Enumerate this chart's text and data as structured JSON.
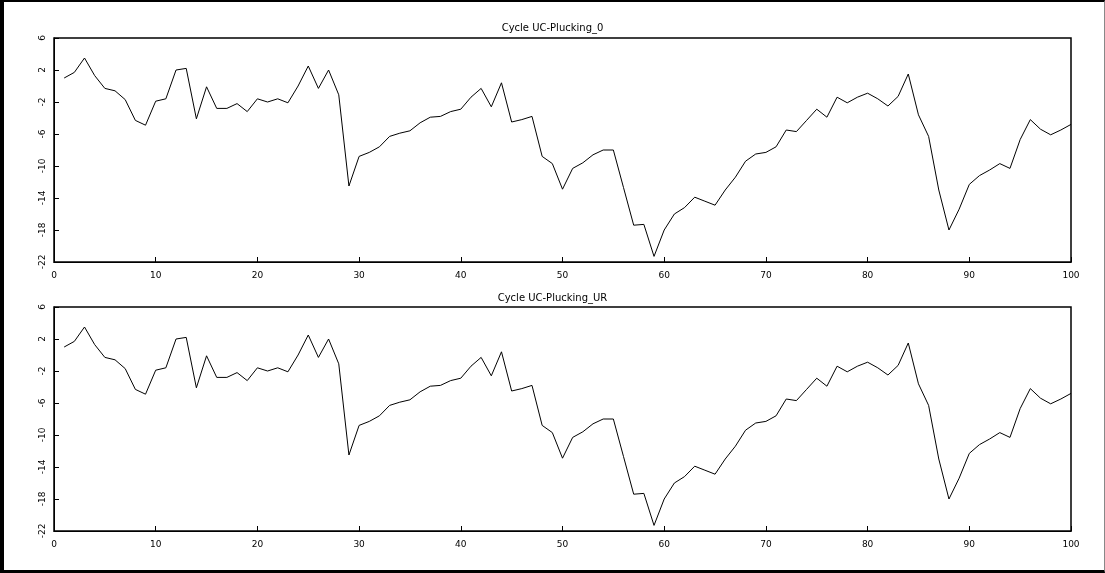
{
  "chart_data": [
    {
      "type": "line",
      "title": "Cycle UC-Plucking_0",
      "x": [
        1,
        2,
        3,
        4,
        5,
        6,
        7,
        8,
        9,
        10,
        11,
        12,
        13,
        14,
        15,
        16,
        17,
        18,
        19,
        20,
        21,
        22,
        23,
        24,
        25,
        26,
        27,
        28,
        29,
        30,
        31,
        32,
        33,
        34,
        35,
        36,
        37,
        38,
        39,
        40,
        41,
        42,
        43,
        44,
        45,
        46,
        47,
        48,
        49,
        50,
        51,
        52,
        53,
        54,
        55,
        56,
        57,
        58,
        59,
        60,
        61,
        62,
        63,
        64,
        65,
        66,
        67,
        68,
        69,
        70,
        71,
        72,
        73,
        74,
        75,
        76,
        77,
        78,
        79,
        80,
        81,
        82,
        83,
        84,
        85,
        86,
        87,
        88,
        89,
        90,
        91,
        92,
        93,
        94,
        95,
        96,
        97,
        98,
        99,
        100
      ],
      "series": [
        {
          "color": "#000000",
          "values": [
            1.0,
            1.7,
            3.5,
            1.3,
            -0.3,
            -0.6,
            -1.7,
            -4.3,
            -4.9,
            -1.9,
            -1.6,
            2.0,
            2.2,
            -4.1,
            -0.1,
            -2.8,
            -2.8,
            -2.2,
            -3.2,
            -1.6,
            -2.0,
            -1.6,
            -2.1,
            0.0,
            2.5,
            -0.3,
            2.0,
            -1.1,
            -12.5,
            -8.8,
            -8.3,
            -7.6,
            -6.3,
            -5.9,
            -5.6,
            -4.6,
            -3.9,
            -3.8,
            -3.2,
            -2.9,
            -1.4,
            -0.3,
            -2.6,
            0.4,
            -4.5,
            -4.2,
            -3.8,
            -8.8,
            -9.7,
            -12.9,
            -10.3,
            -9.6,
            -8.6,
            -8.0,
            -8.0,
            -12.7,
            -17.4,
            -17.3,
            -21.3,
            -18.0,
            -16.0,
            -15.2,
            -13.9,
            -14.4,
            -14.9,
            -13.0,
            -11.4,
            -9.4,
            -8.5,
            -8.3,
            -7.6,
            -5.5,
            -5.7,
            -4.3,
            -2.9,
            -3.9,
            -1.4,
            -2.1,
            -1.4,
            -0.9,
            -1.6,
            -2.5,
            -1.3,
            1.5,
            -3.6,
            -6.3,
            -13.0,
            -18.0,
            -15.4,
            -12.3,
            -11.2,
            -10.5,
            -9.7,
            -10.3,
            -6.7,
            -4.2,
            -5.4,
            -6.1,
            -5.5,
            -4.8
          ]
        }
      ],
      "xlim": [
        0,
        100
      ],
      "xticks": [
        0,
        10,
        20,
        30,
        40,
        50,
        60,
        70,
        80,
        90,
        100
      ],
      "ylim": [
        -22,
        6
      ],
      "yticks": [
        6,
        2,
        -2,
        -6,
        -10,
        -14,
        -18,
        -22
      ],
      "grid": false,
      "marker": "none",
      "line_style": "solid"
    },
    {
      "type": "line",
      "title": "Cycle UC-Plucking_UR",
      "x": [
        1,
        2,
        3,
        4,
        5,
        6,
        7,
        8,
        9,
        10,
        11,
        12,
        13,
        14,
        15,
        16,
        17,
        18,
        19,
        20,
        21,
        22,
        23,
        24,
        25,
        26,
        27,
        28,
        29,
        30,
        31,
        32,
        33,
        34,
        35,
        36,
        37,
        38,
        39,
        40,
        41,
        42,
        43,
        44,
        45,
        46,
        47,
        48,
        49,
        50,
        51,
        52,
        53,
        54,
        55,
        56,
        57,
        58,
        59,
        60,
        61,
        62,
        63,
        64,
        65,
        66,
        67,
        68,
        69,
        70,
        71,
        72,
        73,
        74,
        75,
        76,
        77,
        78,
        79,
        80,
        81,
        82,
        83,
        84,
        85,
        86,
        87,
        88,
        89,
        90,
        91,
        92,
        93,
        94,
        95,
        96,
        97,
        98,
        99,
        100
      ],
      "series": [
        {
          "color": "#000000",
          "values": [
            1.0,
            1.7,
            3.5,
            1.3,
            -0.3,
            -0.6,
            -1.7,
            -4.3,
            -4.9,
            -1.9,
            -1.6,
            2.0,
            2.2,
            -4.1,
            -0.1,
            -2.8,
            -2.8,
            -2.2,
            -3.2,
            -1.6,
            -2.0,
            -1.6,
            -2.1,
            0.0,
            2.5,
            -0.3,
            2.0,
            -1.1,
            -12.5,
            -8.8,
            -8.3,
            -7.6,
            -6.3,
            -5.9,
            -5.6,
            -4.6,
            -3.9,
            -3.8,
            -3.2,
            -2.9,
            -1.4,
            -0.3,
            -2.6,
            0.4,
            -4.5,
            -4.2,
            -3.8,
            -8.8,
            -9.7,
            -12.9,
            -10.3,
            -9.6,
            -8.6,
            -8.0,
            -8.0,
            -12.7,
            -17.4,
            -17.3,
            -21.3,
            -18.0,
            -16.0,
            -15.2,
            -13.9,
            -14.4,
            -14.9,
            -13.0,
            -11.4,
            -9.4,
            -8.5,
            -8.3,
            -7.6,
            -5.5,
            -5.7,
            -4.3,
            -2.9,
            -3.9,
            -1.4,
            -2.1,
            -1.4,
            -0.9,
            -1.6,
            -2.5,
            -1.3,
            1.5,
            -3.6,
            -6.3,
            -13.0,
            -18.0,
            -15.4,
            -12.3,
            -11.2,
            -10.5,
            -9.7,
            -10.3,
            -6.7,
            -4.2,
            -5.4,
            -6.1,
            -5.5,
            -4.8
          ]
        }
      ],
      "xlim": [
        0,
        100
      ],
      "xticks": [
        0,
        10,
        20,
        30,
        40,
        50,
        60,
        70,
        80,
        90,
        100
      ],
      "ylim": [
        -22,
        6
      ],
      "yticks": [
        6,
        2,
        -2,
        -6,
        -10,
        -14,
        -18,
        -22
      ],
      "grid": false,
      "marker": "none",
      "line_style": "solid"
    }
  ]
}
